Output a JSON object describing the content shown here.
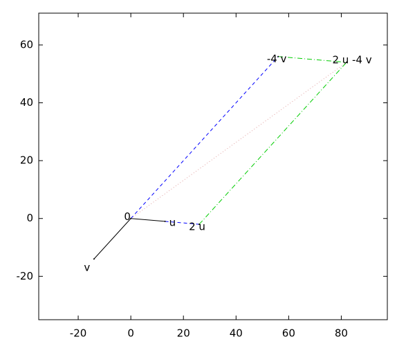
{
  "chart_data": {
    "type": "vector",
    "xlim": [
      -35,
      97.5
    ],
    "ylim": [
      -35,
      71
    ],
    "xticks": [
      -20,
      0,
      20,
      40,
      60,
      80
    ],
    "yticks": [
      -20,
      0,
      20,
      40,
      60
    ],
    "points": [
      {
        "label": "0",
        "x": 0,
        "y": 0
      },
      {
        "label": "u",
        "x": 13,
        "y": -1
      },
      {
        "label": "2 u",
        "x": 26,
        "y": -2
      },
      {
        "label": "v",
        "x": -14,
        "y": -14
      },
      {
        "label": "-4 v",
        "x": 56,
        "y": 56
      },
      {
        "label": "2 u -4 v",
        "x": 82,
        "y": 54
      }
    ],
    "series": [
      {
        "x": [
          0,
          13
        ],
        "y": [
          0,
          -1
        ],
        "color": "#000000",
        "style": "solid"
      },
      {
        "x": [
          0,
          -14
        ],
        "y": [
          0,
          -14
        ],
        "color": "#000000",
        "style": "solid"
      },
      {
        "x": [
          13,
          26
        ],
        "y": [
          -1,
          -2
        ],
        "color": "#0000ff",
        "style": "dashed"
      },
      {
        "x": [
          0,
          56
        ],
        "y": [
          0,
          56
        ],
        "color": "#0000ff",
        "style": "dashed"
      },
      {
        "x": [
          56,
          82
        ],
        "y": [
          56,
          54
        ],
        "color": "#00cc00",
        "style": "dashdot"
      },
      {
        "x": [
          26,
          82
        ],
        "y": [
          -2,
          54
        ],
        "color": "#00cc00",
        "style": "dashdot"
      },
      {
        "x": [
          0,
          82
        ],
        "y": [
          0,
          54
        ],
        "color": "#e0a0a0",
        "style": "dotted"
      }
    ]
  }
}
